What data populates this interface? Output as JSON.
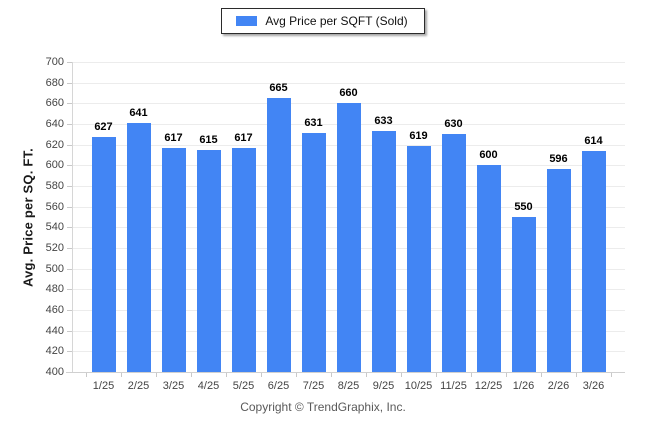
{
  "chart_data": {
    "type": "bar",
    "title": "",
    "legend": "Avg Price per SQFT (Sold)",
    "legend_position": "top-center",
    "categories": [
      "1/25",
      "2/25",
      "3/25",
      "4/25",
      "5/25",
      "6/25",
      "7/25",
      "8/25",
      "9/25",
      "10/25",
      "11/25",
      "12/25",
      "1/26",
      "2/26",
      "3/26"
    ],
    "values": [
      627,
      641,
      617,
      615,
      617,
      665,
      631,
      660,
      633,
      619,
      630,
      600,
      550,
      596,
      614
    ],
    "xlabel": "",
    "ylabel": "Avg. Price per SQ. FT.",
    "ylim": [
      400,
      700
    ],
    "ytick_step": 20,
    "grid": true,
    "value_labels": true,
    "bar_color": "#4285F4"
  },
  "footer": {
    "copyright": "Copyright © TrendGraphix, Inc."
  }
}
